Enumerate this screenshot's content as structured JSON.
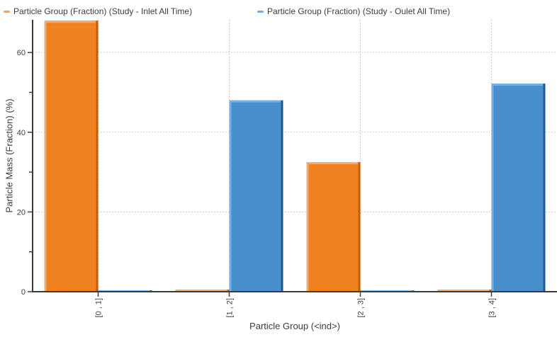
{
  "chart_data": {
    "type": "bar",
    "title": "",
    "categories": [
      "[0 , 1]",
      "[1 , 2]",
      "[2 , 3]",
      "[3 , 4]"
    ],
    "series": [
      {
        "name": "Particle Group (Fraction) (Study - Inlet All Time)",
        "color": "#F0831F",
        "color_light": "#F8AB67",
        "color_dark": "#C05E10",
        "legend_marker_color": "#F5A15E",
        "values": [
          68,
          0.5,
          32.5,
          0.5
        ]
      },
      {
        "name": "Particle Group (Fraction) (Study - Oulet All Time)",
        "color": "#4A8FCD",
        "color_light": "#6CB2F0",
        "color_dark": "#2A5784",
        "legend_marker_color": "#77ABDF",
        "values": [
          0.35,
          48,
          0.3,
          52.2
        ]
      }
    ],
    "xlabel": "Particle Group (<ind>)",
    "ylabel": "Particle Mass (Fraction) (%)",
    "ylim": [
      0,
      68.2
    ],
    "yticks_major": [
      0,
      20,
      40,
      60
    ],
    "yticks_minor": [
      10,
      30,
      50
    ],
    "grid": true,
    "legend_position": "top"
  },
  "colors": {
    "background": "#FFFFFF",
    "axis": "#3B3B3B",
    "grid": "#BBBBBB",
    "text": "#3D3D3D"
  }
}
